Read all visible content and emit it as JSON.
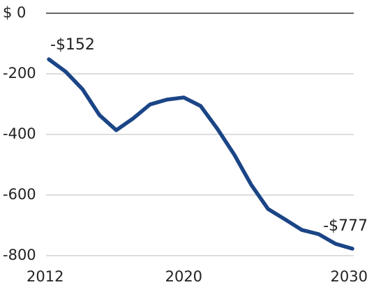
{
  "chart_data": {
    "type": "line",
    "x": [
      2012,
      2013,
      2014,
      2015,
      2016,
      2017,
      2018,
      2019,
      2020,
      2021,
      2022,
      2023,
      2024,
      2025,
      2026,
      2027,
      2028,
      2029,
      2030
    ],
    "series": [
      {
        "color": "#1b4586",
        "values": [
          -152,
          -193,
          -251,
          -336,
          -386,
          -347,
          -301,
          -285,
          -278,
          -306,
          -382,
          -467,
          -566,
          -646,
          -680,
          -715,
          -729,
          -761,
          -777
        ],
        "value_labels": [
          "-$152",
          null,
          null,
          null,
          null,
          null,
          null,
          null,
          null,
          null,
          null,
          null,
          null,
          null,
          null,
          null,
          null,
          null,
          "-$777"
        ]
      }
    ],
    "xlim": [
      2012,
      2030
    ],
    "xticks": [
      2012,
      2020,
      2030
    ],
    "ylim": [
      -800,
      0
    ],
    "yticks": [
      {
        "value": 0,
        "label": "$ 0"
      },
      -200,
      -400,
      -600,
      -800
    ],
    "grid": true
  }
}
